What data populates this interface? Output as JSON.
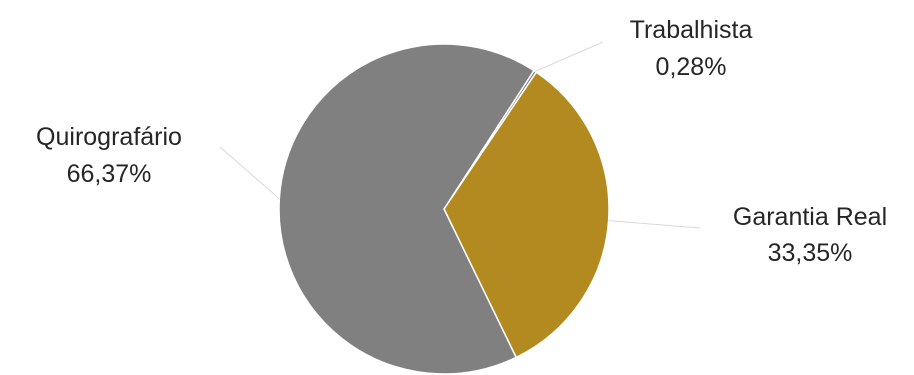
{
  "chart_data": {
    "type": "pie",
    "title": "",
    "legend": "none",
    "slices": [
      {
        "label": "Trabalhista",
        "value": 0.28,
        "value_label": "0,28%",
        "color": "#7F7F7F"
      },
      {
        "label": "Garantia Real",
        "value": 33.35,
        "value_label": "33,35%",
        "color": "#B38A20"
      },
      {
        "label": "Quirografário",
        "value": 66.37,
        "value_label": "66,37%",
        "color": "#808080"
      }
    ]
  }
}
